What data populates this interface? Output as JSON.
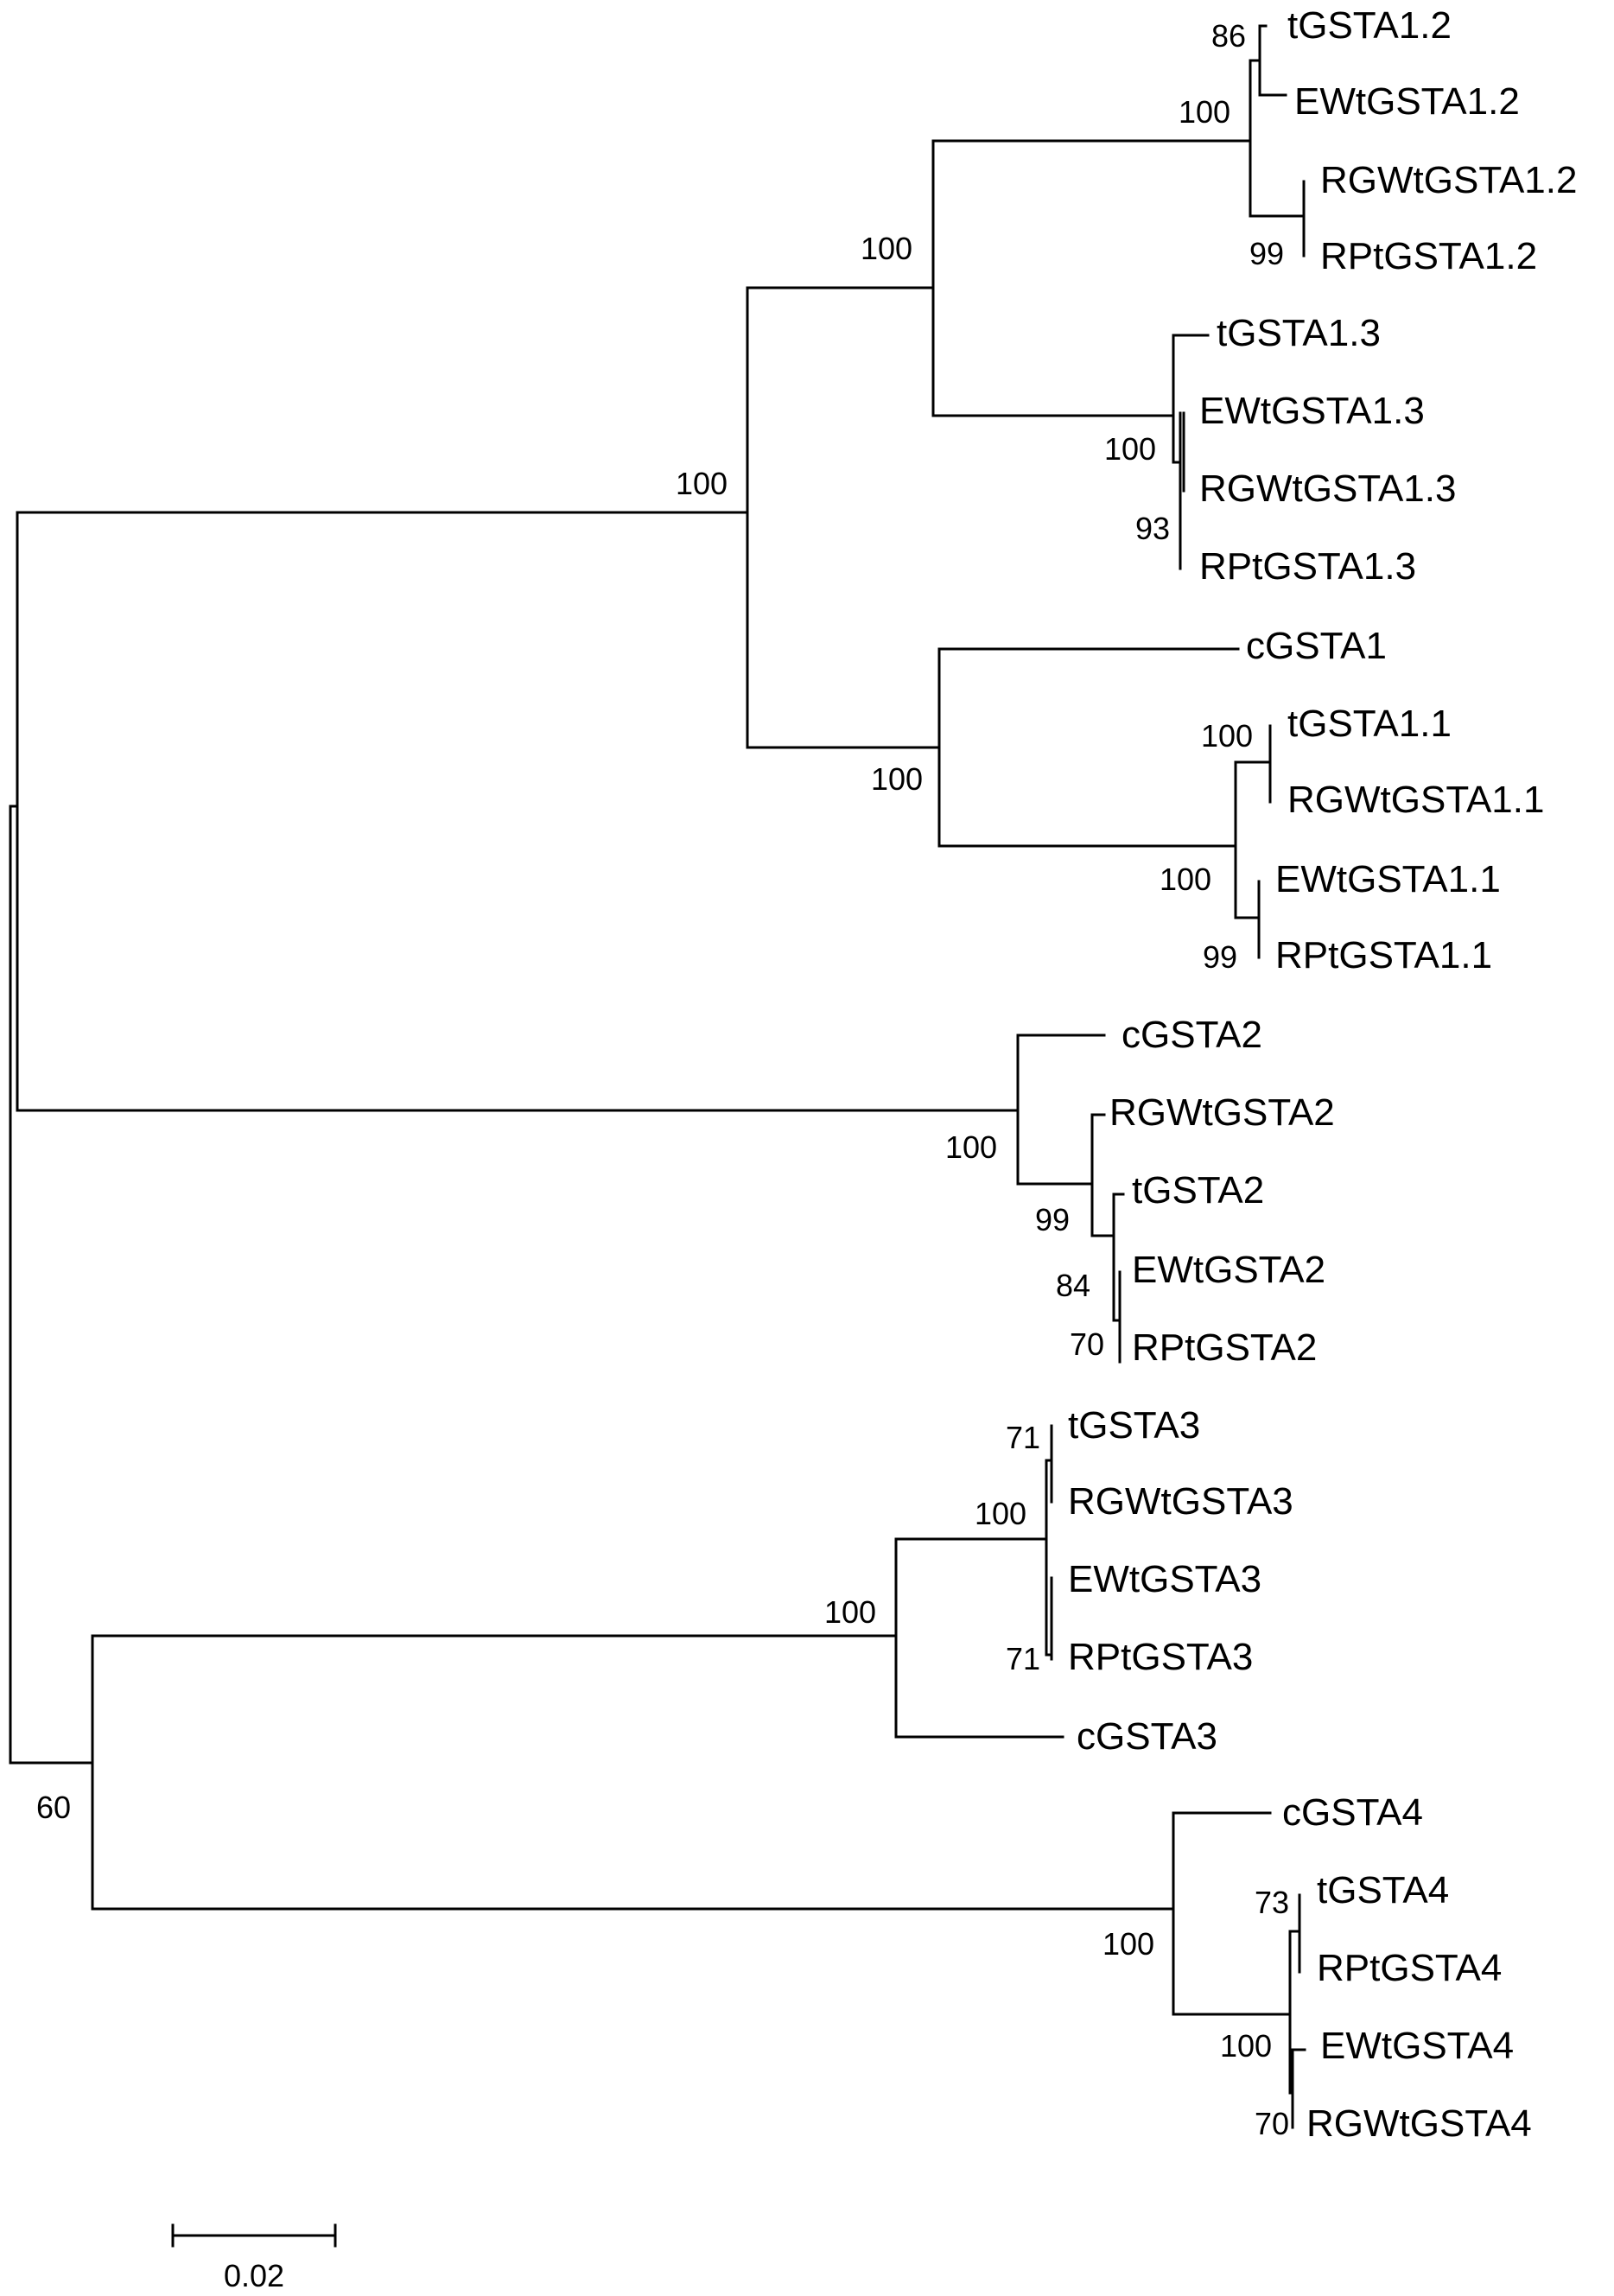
{
  "tree": {
    "leaves": [
      "tGSTA1.2",
      "EWtGSTA1.2",
      "RGWtGSTA1.2",
      "RPtGSTA1.2",
      "tGSTA1.3",
      "EWtGSTA1.3",
      "RGWtGSTA1.3",
      "RPtGSTA1.3",
      "cGSTA1",
      "tGSTA1.1",
      "RGWtGSTA1.1",
      "EWtGSTA1.1",
      "RPtGSTA1.1",
      "cGSTA2",
      "RGWtGSTA2",
      "tGSTA2",
      "EWtGSTA2",
      "RPtGSTA2",
      "tGSTA3",
      "RGWtGSTA3",
      "EWtGSTA3",
      "RPtGSTA3",
      "cGSTA3",
      "cGSTA4",
      "tGSTA4",
      "RPtGSTA4",
      "EWtGSTA4",
      "RGWtGSTA4"
    ],
    "bootstrap_values": [
      "86",
      "100",
      "99",
      "100",
      "100",
      "93",
      "100",
      "100",
      "100",
      "100",
      "99",
      "100",
      "99",
      "84",
      "70",
      "71",
      "100",
      "71",
      "100",
      "60",
      "100",
      "73",
      "100",
      "70"
    ]
  },
  "scale_bar": {
    "label": "0.02",
    "value": 0.02
  }
}
